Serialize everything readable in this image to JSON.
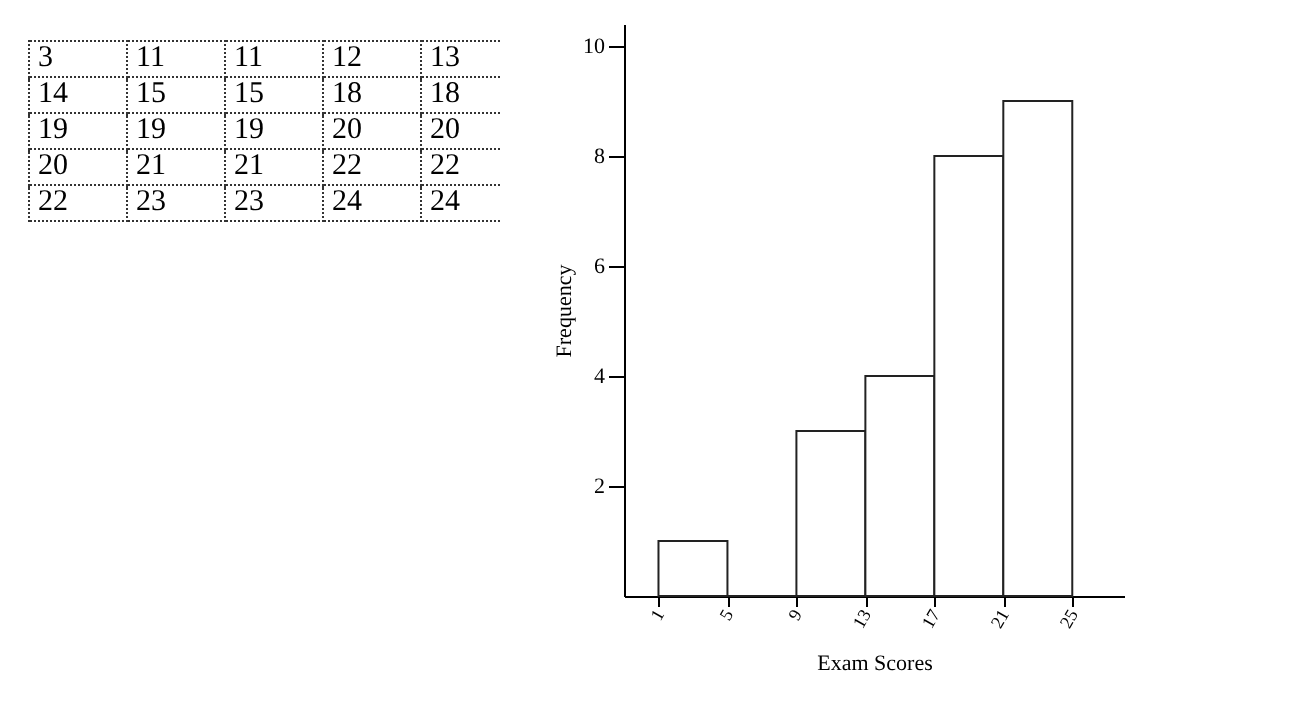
{
  "chart_data": [
    {
      "type": "other",
      "annotations": [
        "3",
        "11",
        "11",
        "12",
        "13",
        "14",
        "15",
        "15",
        "18",
        "18",
        "19",
        "19",
        "19",
        "20",
        "20",
        "20",
        "21",
        "21",
        "22",
        "22",
        "22",
        "23",
        "23",
        "24",
        "24"
      ]
    },
    {
      "type": "histogram",
      "xlabel": "Exam Scores",
      "ylabel": "Frequency",
      "bins": [
        1,
        5,
        9,
        13,
        17,
        21,
        25
      ],
      "values": [
        1,
        0,
        3,
        4,
        8,
        9
      ],
      "xlim": [
        -1,
        28
      ],
      "ylim": [
        0,
        10.4
      ],
      "xticks": [
        1,
        5,
        9,
        13,
        17,
        21,
        25
      ],
      "yticks": [
        2,
        4,
        6,
        8,
        10
      ],
      "grid": false
    }
  ]
}
